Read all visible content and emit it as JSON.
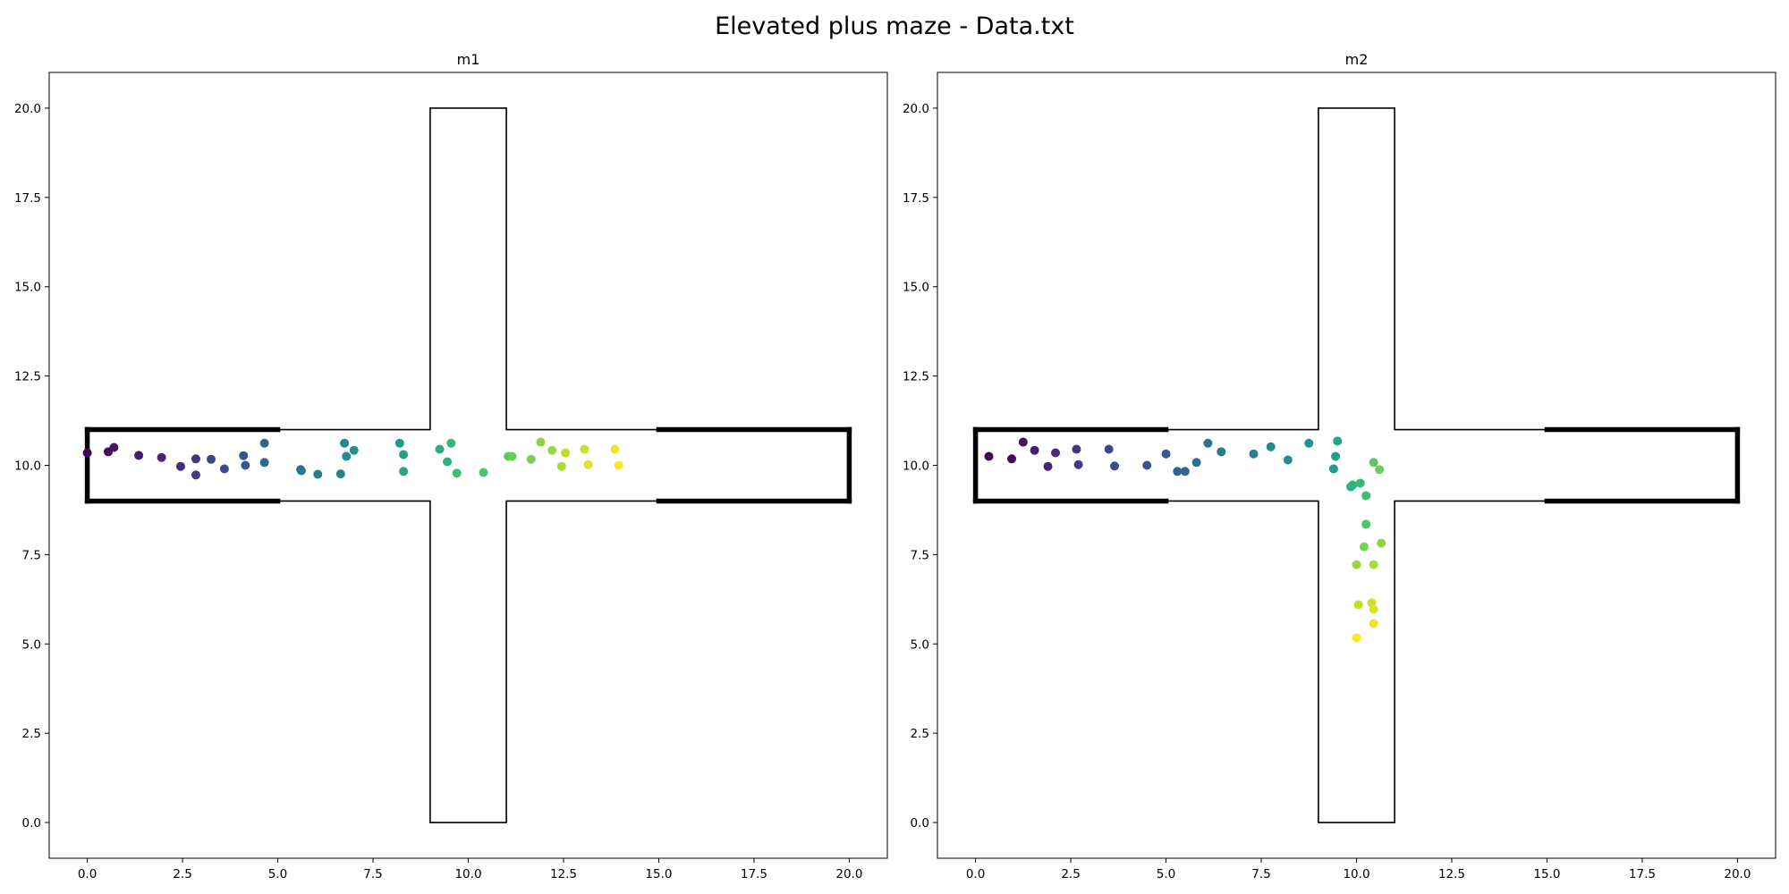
{
  "figure": {
    "title": "Elevated plus maze - Data.txt"
  },
  "chart_data": [
    {
      "type": "scatter",
      "title": "m1",
      "xlabel": "",
      "ylabel": "",
      "xlim": [
        -1,
        21
      ],
      "ylim": [
        -1,
        21
      ],
      "xticks": [
        "0.0",
        "2.5",
        "5.0",
        "7.5",
        "10.0",
        "12.5",
        "15.0",
        "17.5",
        "20.0"
      ],
      "yticks": [
        "0.0",
        "2.5",
        "5.0",
        "7.5",
        "10.0",
        "12.5",
        "15.0",
        "17.5",
        "20.0"
      ],
      "grid": false,
      "colormap": "viridis",
      "maze": {
        "arm_y_range": [
          9,
          11
        ],
        "arm_x_range": [
          9,
          11
        ],
        "closed_arms_x": [
          [
            0,
            5
          ],
          [
            15,
            20
          ]
        ],
        "extent": [
          0,
          20
        ]
      },
      "points": [
        [
          0.0,
          10.35
        ],
        [
          0.55,
          10.38
        ],
        [
          0.7,
          10.5
        ],
        [
          1.35,
          10.28
        ],
        [
          1.95,
          10.22
        ],
        [
          2.45,
          9.97
        ],
        [
          2.85,
          10.18
        ],
        [
          2.85,
          9.73
        ],
        [
          3.25,
          10.17
        ],
        [
          3.6,
          9.9
        ],
        [
          4.1,
          10.27
        ],
        [
          4.15,
          10.0
        ],
        [
          4.65,
          10.62
        ],
        [
          4.65,
          10.08
        ],
        [
          5.6,
          9.88
        ],
        [
          5.62,
          9.85
        ],
        [
          6.05,
          9.75
        ],
        [
          6.65,
          9.76
        ],
        [
          6.75,
          10.62
        ],
        [
          6.8,
          10.25
        ],
        [
          7.0,
          10.42
        ],
        [
          8.2,
          10.62
        ],
        [
          8.3,
          10.3
        ],
        [
          8.3,
          9.83
        ],
        [
          9.25,
          10.45
        ],
        [
          9.45,
          10.1
        ],
        [
          9.55,
          10.62
        ],
        [
          9.7,
          9.78
        ],
        [
          10.4,
          9.8
        ],
        [
          11.05,
          10.25
        ],
        [
          11.15,
          10.25
        ],
        [
          11.65,
          10.17
        ],
        [
          11.9,
          10.65
        ],
        [
          12.2,
          10.42
        ],
        [
          12.45,
          9.97
        ],
        [
          12.55,
          10.35
        ],
        [
          13.05,
          10.45
        ],
        [
          13.15,
          10.02
        ],
        [
          13.85,
          10.45
        ],
        [
          13.95,
          10.0
        ]
      ]
    },
    {
      "type": "scatter",
      "title": "m2",
      "xlabel": "",
      "ylabel": "",
      "xlim": [
        -1,
        21
      ],
      "ylim": [
        -1,
        21
      ],
      "xticks": [
        "0.0",
        "2.5",
        "5.0",
        "7.5",
        "10.0",
        "12.5",
        "15.0",
        "17.5",
        "20.0"
      ],
      "yticks": [
        "0.0",
        "2.5",
        "5.0",
        "7.5",
        "10.0",
        "12.5",
        "15.0",
        "17.5",
        "20.0"
      ],
      "grid": false,
      "colormap": "viridis",
      "maze": {
        "arm_y_range": [
          9,
          11
        ],
        "arm_x_range": [
          9,
          11
        ],
        "closed_arms_x": [
          [
            0,
            5
          ],
          [
            15,
            20
          ]
        ],
        "extent": [
          0,
          20
        ]
      },
      "points": [
        [
          0.35,
          10.25
        ],
        [
          0.95,
          10.18
        ],
        [
          1.25,
          10.65
        ],
        [
          1.55,
          10.42
        ],
        [
          1.9,
          9.97
        ],
        [
          2.1,
          10.35
        ],
        [
          2.65,
          10.45
        ],
        [
          2.7,
          10.02
        ],
        [
          3.5,
          10.45
        ],
        [
          3.65,
          9.98
        ],
        [
          4.5,
          10.0
        ],
        [
          5.0,
          10.32
        ],
        [
          5.3,
          9.83
        ],
        [
          5.5,
          9.83
        ],
        [
          5.8,
          10.08
        ],
        [
          6.1,
          10.62
        ],
        [
          6.45,
          10.38
        ],
        [
          7.3,
          10.32
        ],
        [
          7.75,
          10.52
        ],
        [
          8.2,
          10.15
        ],
        [
          8.75,
          10.62
        ],
        [
          9.4,
          9.9
        ],
        [
          9.45,
          10.25
        ],
        [
          9.5,
          10.68
        ],
        [
          9.85,
          9.4
        ],
        [
          9.9,
          9.45
        ],
        [
          10.1,
          9.5
        ],
        [
          10.25,
          9.15
        ],
        [
          10.25,
          8.35
        ],
        [
          10.45,
          10.08
        ],
        [
          10.6,
          9.88
        ],
        [
          10.2,
          7.72
        ],
        [
          10.65,
          7.82
        ],
        [
          10.0,
          7.22
        ],
        [
          10.45,
          7.22
        ],
        [
          10.05,
          6.1
        ],
        [
          10.4,
          6.15
        ],
        [
          10.45,
          5.97
        ],
        [
          10.45,
          5.57
        ],
        [
          10.0,
          5.17
        ]
      ]
    }
  ]
}
